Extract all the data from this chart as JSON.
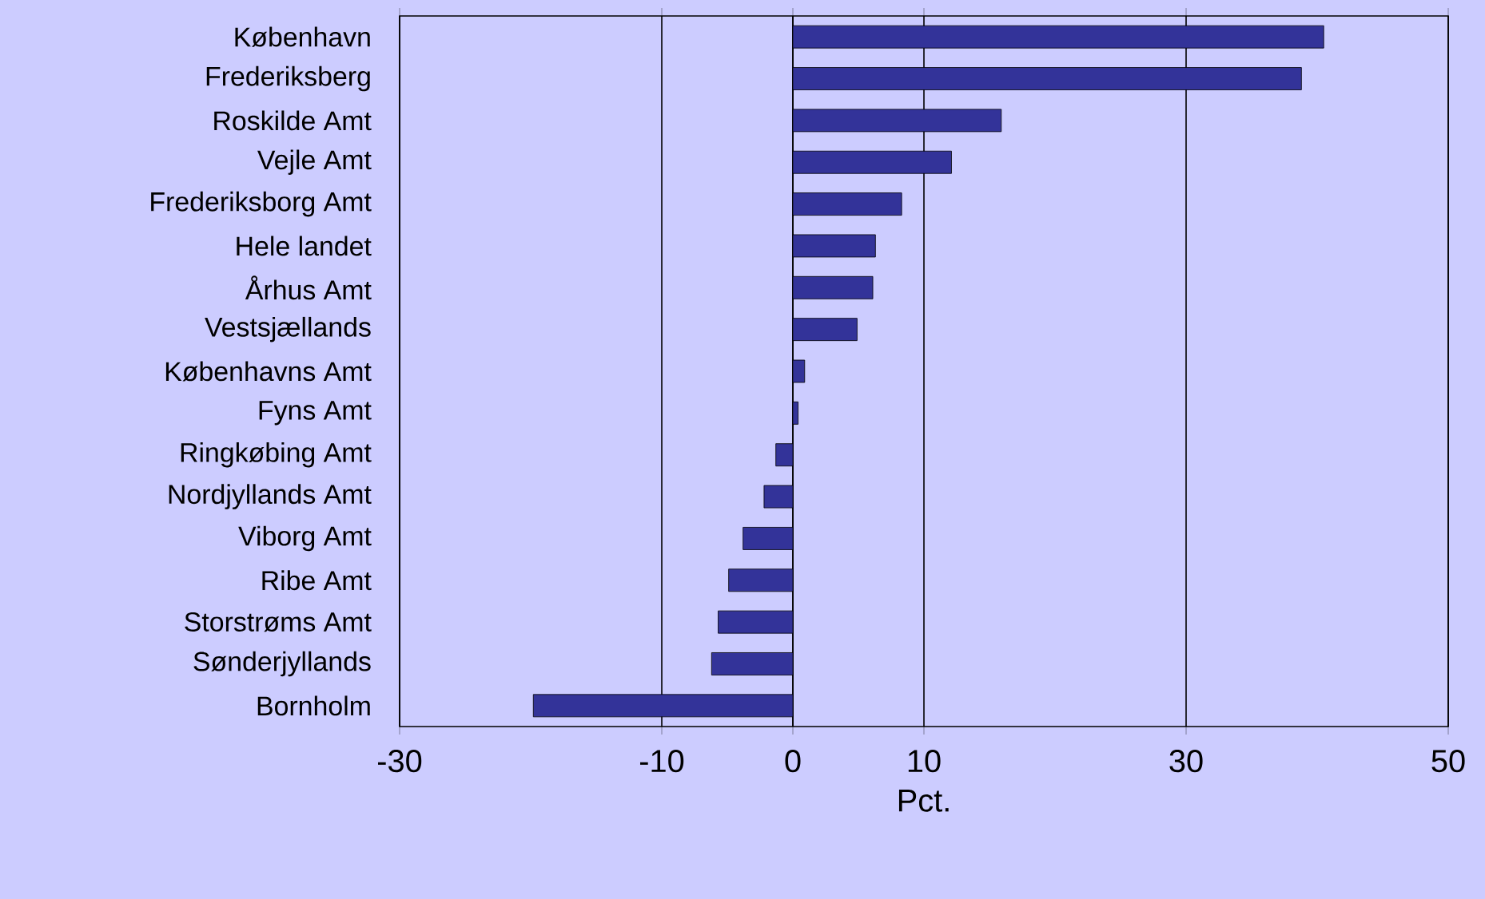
{
  "chart_data": {
    "type": "bar",
    "orientation": "horizontal",
    "xlabel": "Pct.",
    "categories": [
      "København",
      "Frederiksberg",
      "Roskilde Amt",
      "Vejle Amt",
      "Frederiksborg Amt",
      "Hele landet",
      "Århus Amt",
      "Vestsjællands",
      "Københavns Amt",
      "Fyns Amt",
      "Ringkøbing Amt",
      "Nordjyllands Amt",
      "Viborg Amt",
      "Ribe Amt",
      "Storstrøms Amt",
      "Sønderjyllands",
      "Bornholm"
    ],
    "values": [
      40.5,
      38.8,
      15.9,
      12.1,
      8.3,
      6.3,
      6.1,
      4.9,
      0.9,
      0.4,
      -1.3,
      -2.2,
      -3.8,
      -4.9,
      -5.7,
      -6.2,
      -19.8
    ],
    "color": "#333399",
    "xlim": [
      -30,
      50
    ],
    "xticks": [
      -30,
      -10,
      0,
      10,
      30,
      50
    ],
    "grid": "x"
  }
}
